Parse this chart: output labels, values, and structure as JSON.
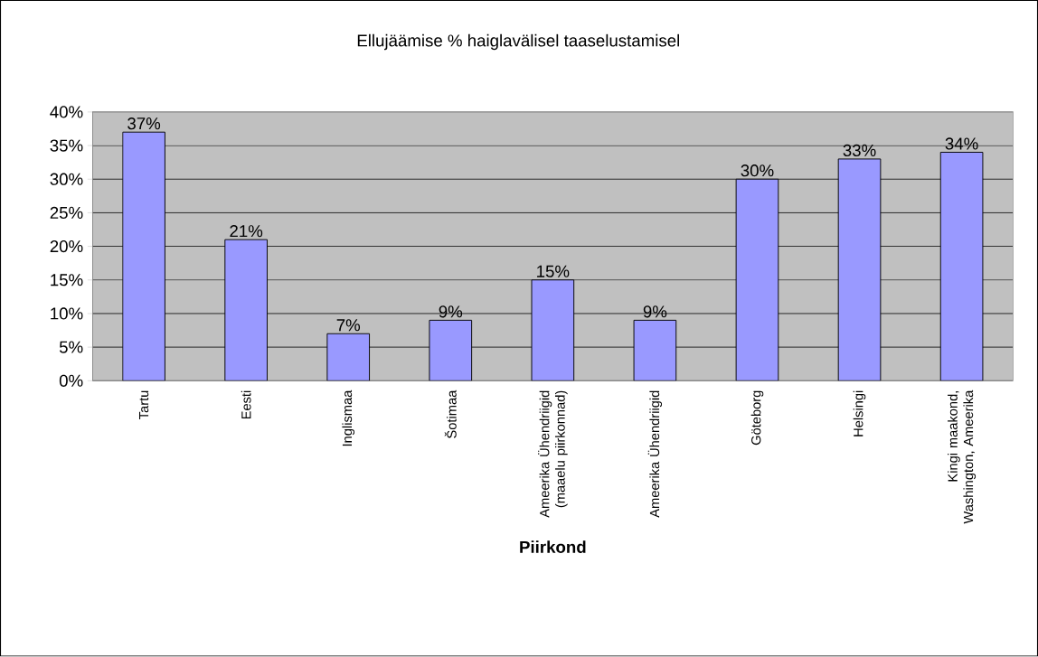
{
  "chart_data": {
    "type": "bar",
    "title": "Ellujäämise % haiglavälisel taaselustamisel",
    "xlabel": "Piirkond",
    "categories": [
      "Tartu",
      "Eesti",
      "Inglismaa",
      "Šotimaa",
      "Ameerika Ühendriigid (maaelu piirkonnad)",
      "Ameerika Ühendriigid",
      "Göteborg",
      "Helsingi",
      "Kingi maakond, Washington, Ameerika"
    ],
    "values": [
      37,
      21,
      7,
      9,
      15,
      9,
      30,
      33,
      34
    ],
    "value_labels": [
      "37%",
      "21%",
      "7%",
      "9%",
      "15%",
      "9%",
      "30%",
      "33%",
      "34%"
    ],
    "color": "#9999ff",
    "ylim": [
      0,
      40
    ],
    "yticks": [
      {
        "value": 0,
        "label": "0%"
      },
      {
        "value": 5,
        "label": "5%"
      },
      {
        "value": 10,
        "label": "10%"
      },
      {
        "value": 15,
        "label": "15%"
      },
      {
        "value": 20,
        "label": "20%"
      },
      {
        "value": 25,
        "label": "25%"
      },
      {
        "value": 30,
        "label": "30%"
      },
      {
        "value": 35,
        "label": "35%"
      },
      {
        "value": 40,
        "label": "40%"
      }
    ],
    "grid": "y"
  }
}
